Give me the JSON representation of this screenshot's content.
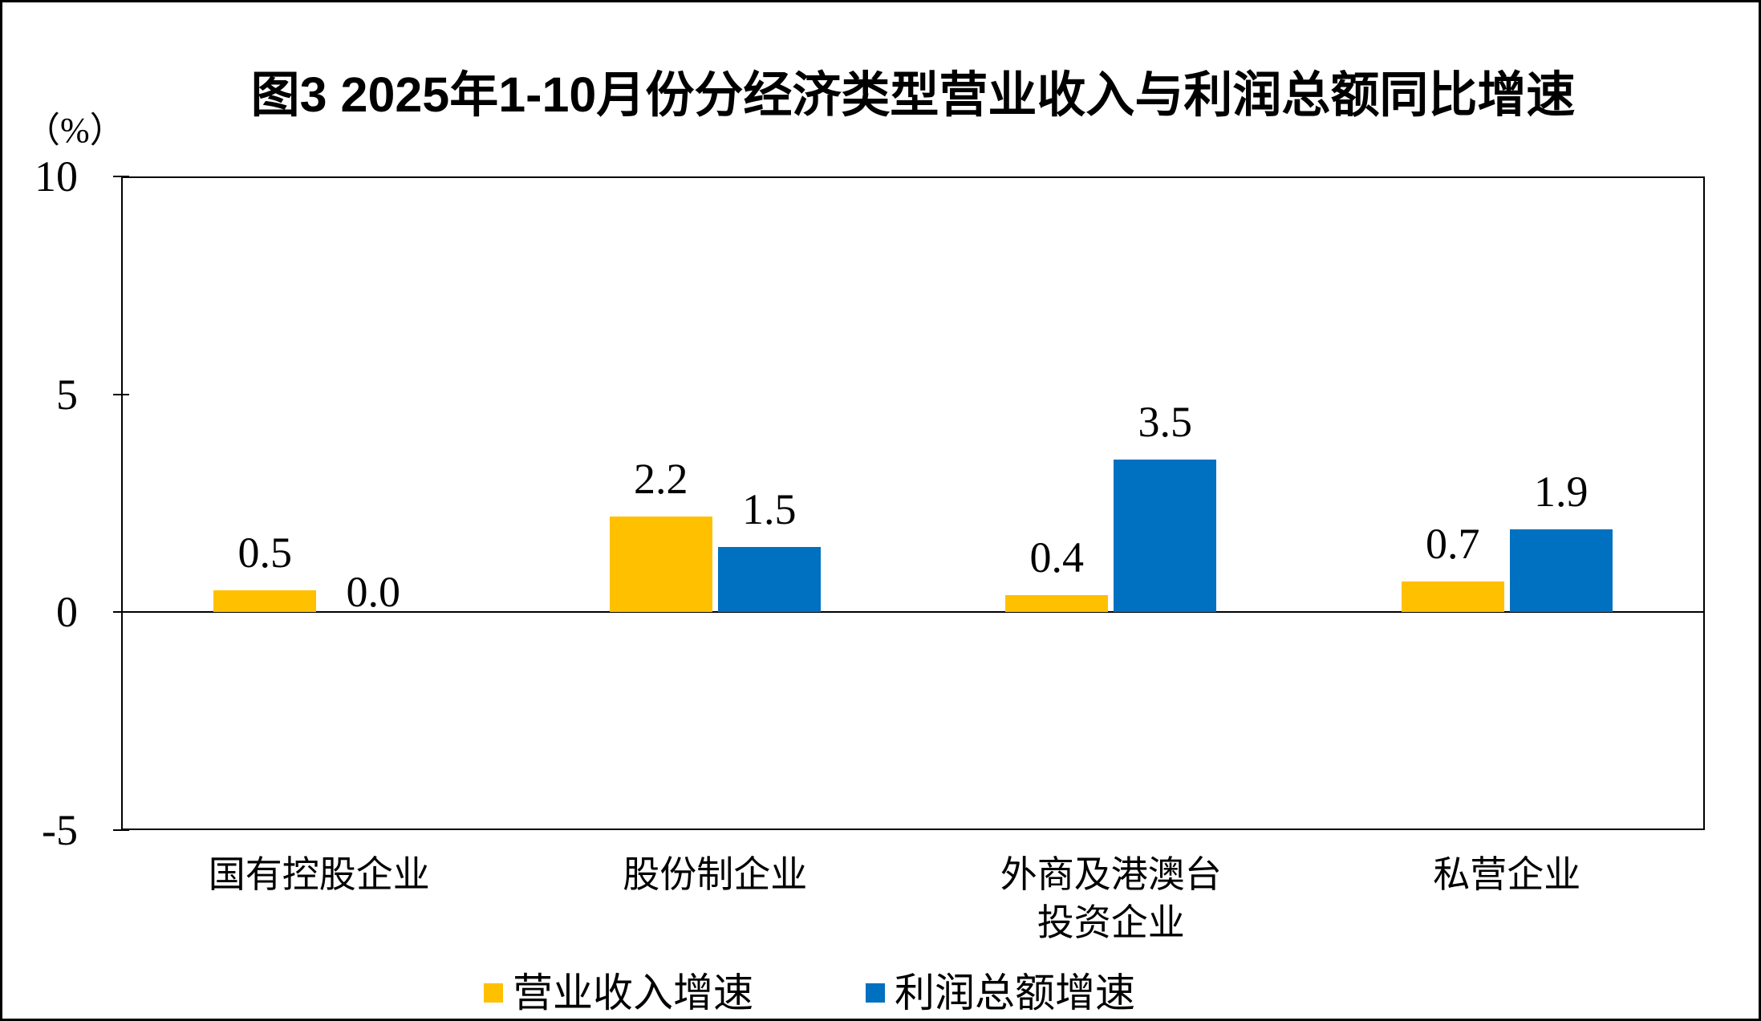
{
  "title": "图3  2025年1-10月份分经济类型营业收入与利润总额同比增速",
  "unit_label": "（%）",
  "chart_data": {
    "type": "bar",
    "title": "图3  2025年1-10月份分经济类型营业收入与利润总额同比增速",
    "ylabel": "（%）",
    "categories": [
      "国有控股企业",
      "股份制企业",
      "外商及港澳台\n投资企业",
      "私营企业"
    ],
    "series": [
      {
        "key": "revenue",
        "name": "营业收入增速",
        "color": "#FFC000",
        "values": [
          0.5,
          2.2,
          0.4,
          0.7
        ]
      },
      {
        "key": "profit",
        "name": "利润总额增速",
        "color": "#0070C0",
        "values": [
          0.0,
          1.5,
          3.5,
          1.9
        ]
      }
    ],
    "ylim": [
      -5,
      10
    ],
    "yticks": [
      10,
      5,
      0,
      -5
    ],
    "grid": false,
    "data_labels": true,
    "data_label_format": "0.0",
    "legend_position": "bottom",
    "axis_color": "#000000"
  }
}
